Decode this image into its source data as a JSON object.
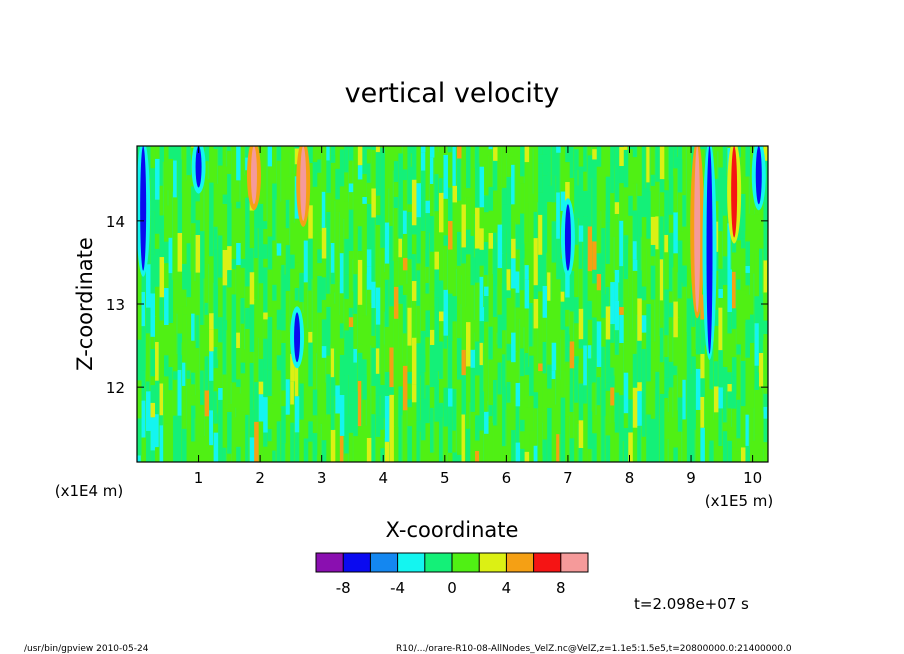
{
  "chart_data": {
    "type": "heatmap",
    "title": "vertical velocity",
    "xlabel": "X-coordinate",
    "ylabel": "Z-coordinate",
    "x_scale_label": "(x1E5 m)",
    "y_scale_label": "(x1E4 m)",
    "xlim": [
      0,
      10.25
    ],
    "ylim": [
      11.1,
      14.9
    ],
    "x_ticks": [
      1,
      2,
      3,
      4,
      5,
      6,
      7,
      8,
      9,
      10
    ],
    "y_ticks": [
      12,
      13,
      14
    ],
    "x_tick_labels": [
      "1",
      "2",
      "3",
      "4",
      "5",
      "6",
      "7",
      "8",
      "9",
      "10"
    ],
    "y_tick_labels": [
      "12",
      "13",
      "14"
    ],
    "grid": false,
    "colorbar": {
      "levels": [
        -10,
        -8,
        -6,
        -4,
        -2,
        0,
        2,
        4,
        6,
        8,
        10
      ],
      "colors": [
        "#8a0fb0",
        "#0a0af0",
        "#1487f0",
        "#14f5f0",
        "#14f078",
        "#50f014",
        "#dcf014",
        "#f5a014",
        "#f51414",
        "#f59a9a"
      ],
      "tick_labels": [
        "-8",
        "-4",
        "0",
        "4",
        "8"
      ],
      "tick_values": [
        -8,
        -4,
        0,
        4,
        8
      ]
    },
    "background_value_range": [
      -2,
      2
    ],
    "features": [
      {
        "x": 0.1,
        "z_range": [
          13.4,
          14.9
        ],
        "min_value": -8
      },
      {
        "x": 1.0,
        "z_range": [
          14.4,
          14.9
        ],
        "min_value": -8
      },
      {
        "x": 1.9,
        "z_range": [
          14.2,
          14.9
        ],
        "max_value": 8
      },
      {
        "x": 2.7,
        "z_range": [
          14.0,
          14.9
        ],
        "max_value": 8
      },
      {
        "x": 2.6,
        "z_range": [
          12.3,
          12.9
        ],
        "min_value": -8
      },
      {
        "x": 7.0,
        "z_range": [
          13.4,
          14.2
        ],
        "min_value": -8
      },
      {
        "x": 9.1,
        "z_range": [
          12.9,
          14.9
        ],
        "max_value": 8
      },
      {
        "x": 9.3,
        "z_range": [
          12.4,
          14.9
        ],
        "min_value": -8
      },
      {
        "x": 9.7,
        "z_range": [
          13.8,
          14.9
        ],
        "max_value": 6
      },
      {
        "x": 10.1,
        "z_range": [
          14.2,
          14.9
        ],
        "min_value": -8
      }
    ]
  },
  "time_label": "t=2.098e+07 s",
  "footer_left": "/usr/bin/gpview   2010-05-24",
  "footer_right": "R10/.../orare-R10-08-AllNodes_VelZ.nc@VelZ,z=1.1e5:1.5e5,t=20800000.0:21400000.0"
}
